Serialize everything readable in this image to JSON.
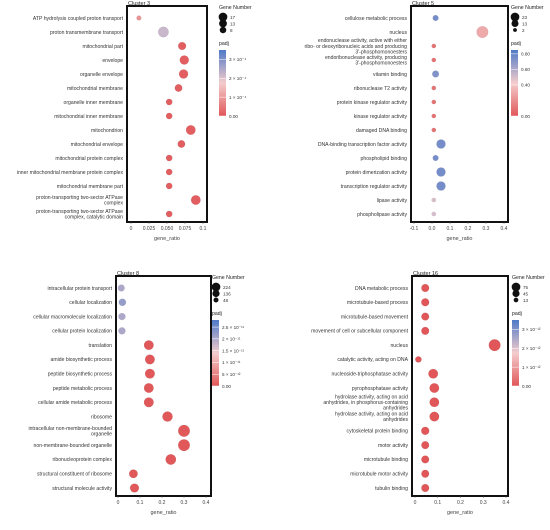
{
  "legend_titles": {
    "size": "Gene Number",
    "color": "padj"
  },
  "colors": {
    "low_padj": "#e15759",
    "mid": "#f4cccc",
    "high_padj": "#4e79c7",
    "frame": "#111111"
  },
  "chart_data": [
    {
      "type": "scatter",
      "title": "Cluster 3",
      "xlabel": "gene_ratio",
      "xlim": [
        0.0,
        0.1
      ],
      "xticks": [
        "0",
        "0.025",
        "0.050",
        "0.075",
        "0.1"
      ],
      "categories": [
        "ATP hydrolysis coupled proton transport",
        "proton transmembrane transport",
        "mitochondrial part",
        "envelope",
        "organelle envelope",
        "mitochondrial membrane",
        "organelle inner membrane",
        "mitochondrial inner membrane",
        "mitochondrion",
        "mitochondrial envelope",
        "mitochondrial protein complex",
        "inner mitochondrial membrane protein complex",
        "mitochondrial membrane part",
        "proton-transporting two-sector ATPase complex",
        "proton-transporting two-sector ATPase complex, catalytic domain"
      ],
      "gene_ratio": [
        0.011,
        0.045,
        0.071,
        0.074,
        0.073,
        0.066,
        0.053,
        0.053,
        0.083,
        0.07,
        0.053,
        0.053,
        0.053,
        0.09,
        0.053
      ],
      "gene_number": [
        1,
        13,
        6,
        9,
        9,
        5,
        3,
        3,
        10,
        5,
        3,
        3,
        3,
        10,
        3
      ],
      "padj": [
        9e-05,
        0.00022,
        1e-05,
        1e-05,
        1e-05,
        1e-05,
        1e-05,
        1e-05,
        1e-05,
        1e-05,
        1e-05,
        1e-05,
        1e-05,
        1e-05,
        1e-05
      ],
      "size_legend": {
        "values": [
          17,
          13,
          8
        ],
        "labels": [
          "17",
          "13",
          "8"
        ]
      },
      "color_legend": {
        "max": 0.00035,
        "ticks": [
          0.0003,
          0.0002,
          0.0001,
          0.0
        ],
        "labels": [
          "3 × 10⁻⁴",
          "2 × 10⁻⁴",
          "1 × 10⁻⁴",
          "0.00"
        ]
      }
    },
    {
      "type": "scatter",
      "title": "Cluster 5",
      "xlabel": "gene_ratio",
      "xlim": [
        -0.1,
        0.4
      ],
      "xticks": [
        "-0.1",
        "0.0",
        "0.1",
        "0.2",
        "0.3",
        "0.4"
      ],
      "categories": [
        "cellulose metabolic process",
        "nucleus",
        "endonuclease activity, active with either ribo- or deoxyribonucleic acids and producing 3'-phosphomonoesters",
        "endoribonuclease activity, producing 3'-phosphomonoesters",
        "vitamin binding",
        "ribonuclease T2 activity",
        "protein kinase regulator activity",
        "kinase regulator activity",
        "damaged DNA binding",
        "DNA-binding transcription factor activity",
        "phospholipid binding",
        "protein dimerization activity",
        "transcription regulator activity",
        "lipase activity",
        "phospholipase activity"
      ],
      "gene_ratio": [
        0.02,
        0.28,
        0.01,
        0.01,
        0.02,
        0.01,
        0.01,
        0.01,
        0.01,
        0.05,
        0.02,
        0.05,
        0.05,
        0.01,
        0.01
      ],
      "gene_number": [
        3,
        23,
        1,
        1,
        5,
        1,
        1,
        1,
        1,
        12,
        3,
        12,
        12,
        1,
        1
      ],
      "padj": [
        0.75,
        0.3,
        0.1,
        0.1,
        0.72,
        0.1,
        0.1,
        0.1,
        0.1,
        0.75,
        0.75,
        0.75,
        0.75,
        0.5,
        0.5
      ],
      "size_legend": {
        "values": [
          23,
          13,
          2
        ],
        "labels": [
          "23",
          "13",
          "2"
        ]
      },
      "color_legend": {
        "max": 0.85,
        "ticks": [
          0.8,
          0.6,
          0.4,
          0.0
        ],
        "labels": [
          "0.80",
          "0.60",
          "0.40",
          "0.00"
        ]
      }
    },
    {
      "type": "scatter",
      "title": "Cluster 8",
      "xlabel": "gene_ratio",
      "xlim": [
        0.0,
        0.4
      ],
      "xticks": [
        "0",
        "0.1",
        "0.2",
        "0.3",
        "0.4"
      ],
      "categories": [
        "intracellular protein transport",
        "cellular localization",
        "cellular macromolecule localization",
        "cellular protein localization",
        "translation",
        "amide biosynthetic process",
        "peptide biosynthetic process",
        "peptide metabolic process",
        "cellular amide metabolic process",
        "ribosome",
        "intracellular non-membrane-bounded organelle",
        "non-membrane-bounded organelle",
        "ribonucleoprotein complex",
        "structural constituent of ribosome",
        "structural molecule activity"
      ],
      "gene_ratio": [
        0.015,
        0.02,
        0.018,
        0.018,
        0.14,
        0.145,
        0.145,
        0.14,
        0.14,
        0.225,
        0.3,
        0.3,
        0.24,
        0.07,
        0.075
      ],
      "gene_number": [
        48,
        60,
        55,
        55,
        136,
        140,
        140,
        138,
        140,
        160,
        224,
        224,
        170,
        100,
        110
      ],
      "padj": [
        2e-11,
        2.2e-11,
        2e-11,
        2e-11,
        1e-13,
        1e-13,
        1e-13,
        1e-13,
        1e-13,
        1e-13,
        1e-13,
        1e-13,
        1e-13,
        1e-13,
        1e-13
      ],
      "size_legend": {
        "values": [
          224,
          136,
          48
        ],
        "labels": [
          "224",
          "136",
          "48"
        ]
      },
      "color_legend": {
        "max": 2.8e-11,
        "ticks": [
          2.5e-11,
          2e-11,
          1.5e-11,
          1e-11,
          5e-12,
          0
        ],
        "labels": [
          "2.5 × 10⁻¹¹",
          "2 × 10⁻¹¹",
          "1.5 × 10⁻¹¹",
          "1 × 10⁻¹¹",
          "5 × 10⁻¹²",
          "0.00"
        ]
      }
    },
    {
      "type": "scatter",
      "title": "Cluster 16",
      "xlabel": "gene_ratio",
      "xlim": [
        0.0,
        0.4
      ],
      "xticks": [
        "0",
        "0.1",
        "0.2",
        "0.3",
        "0.4"
      ],
      "categories": [
        "DNA metabolic process",
        "microtubule-based process",
        "microtubule-based movement",
        "movement of cell or subcellular component",
        "nucleus",
        "catalytic activity, acting on DNA",
        "nucleoside-triphosphatase activity",
        "pyrophosphatase activity",
        "hydrolase activity, acting on acid anhydrides, in phosphorus-containing anhydrides",
        "hydrolase activity, acting on acid anhydrides",
        "cytoskeletal protein binding",
        "motor activity",
        "microtubule binding",
        "microtubule motor activity",
        "tubulin binding"
      ],
      "gene_ratio": [
        0.045,
        0.045,
        0.045,
        0.045,
        0.35,
        0.015,
        0.08,
        0.085,
        0.085,
        0.085,
        0.045,
        0.045,
        0.045,
        0.045,
        0.045
      ],
      "gene_number": [
        25,
        26,
        25,
        25,
        75,
        13,
        45,
        45,
        45,
        45,
        27,
        25,
        25,
        25,
        25
      ],
      "padj": [
        1e-19,
        1e-19,
        1e-19,
        1e-19,
        1e-19,
        1e-19,
        1e-19,
        1e-19,
        1e-19,
        1e-19,
        1e-19,
        1e-19,
        1e-19,
        1e-19,
        1e-19
      ],
      "size_legend": {
        "values": [
          75,
          45,
          13
        ],
        "labels": [
          "75",
          "45",
          "13"
        ]
      },
      "color_legend": {
        "max": 3.5e-12,
        "ticks": [
          3e-12,
          2e-12,
          1e-12,
          0
        ],
        "labels": [
          "3 × 10⁻¹²",
          "2 × 10⁻¹²",
          "1 × 10⁻¹²",
          "0.00"
        ]
      }
    }
  ]
}
